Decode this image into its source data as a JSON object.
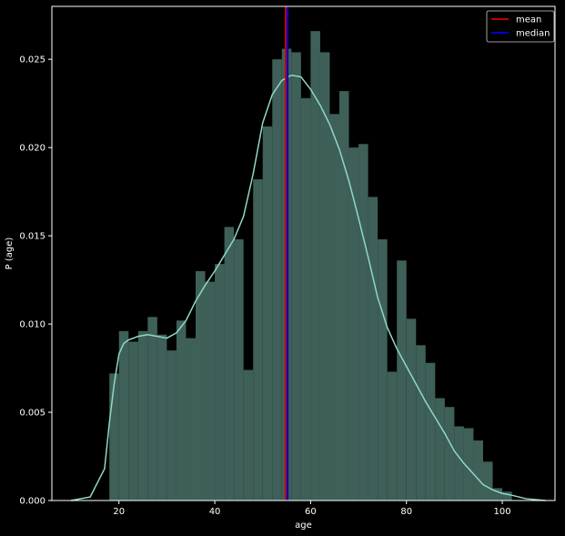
{
  "chart_data": {
    "type": "histogram",
    "title": "",
    "xlabel": "age",
    "ylabel": "P (age)",
    "xlim": [
      6,
      111
    ],
    "ylim": [
      0,
      0.028
    ],
    "xticks": [
      20,
      40,
      60,
      80,
      100
    ],
    "yticks": [
      0.0,
      0.005,
      0.01,
      0.015,
      0.02,
      0.025
    ],
    "ytick_labels": [
      "0.000",
      "0.005",
      "0.010",
      "0.015",
      "0.020",
      "0.025"
    ],
    "grid": false,
    "legend_position": "top-right",
    "bins": {
      "edges": [
        18,
        20,
        22,
        24,
        26,
        28,
        30,
        32,
        34,
        36,
        38,
        40,
        42,
        44,
        46,
        48,
        50,
        52,
        54,
        56,
        58,
        60,
        62,
        64,
        66,
        68,
        70,
        72,
        74,
        76,
        78,
        80,
        82,
        84,
        86,
        88,
        90,
        92,
        94,
        96,
        98,
        100,
        102
      ],
      "density": [
        0.0072,
        0.0096,
        0.009,
        0.0096,
        0.0104,
        0.0094,
        0.0085,
        0.0102,
        0.0092,
        0.013,
        0.0124,
        0.0134,
        0.0155,
        0.0148,
        0.0074,
        0.0182,
        0.0212,
        0.025,
        0.0256,
        0.0254,
        0.0228,
        0.0266,
        0.0254,
        0.0219,
        0.0232,
        0.02,
        0.0202,
        0.0172,
        0.0148,
        0.0073,
        0.0136,
        0.0103,
        0.0088,
        0.0078,
        0.0058,
        0.0053,
        0.0042,
        0.0041,
        0.0034,
        0.0022,
        0.0007,
        0.0005
      ]
    },
    "kde": {
      "x": [
        10,
        14,
        17,
        18,
        19,
        20,
        21,
        22,
        24,
        26,
        28,
        30,
        32,
        34,
        36,
        38,
        40,
        42,
        44,
        46,
        48,
        50,
        52,
        54,
        56,
        58,
        60,
        62,
        64,
        66,
        68,
        70,
        72,
        74,
        76,
        78,
        80,
        82,
        84,
        86,
        88,
        90,
        92,
        94,
        96,
        98,
        100,
        102,
        105,
        109
      ],
      "y": [
        0.0,
        0.0002,
        0.0018,
        0.0044,
        0.0066,
        0.0083,
        0.0089,
        0.0091,
        0.0093,
        0.0094,
        0.0093,
        0.0092,
        0.0095,
        0.0102,
        0.0113,
        0.0122,
        0.013,
        0.0139,
        0.0148,
        0.0161,
        0.0185,
        0.0214,
        0.023,
        0.0238,
        0.0241,
        0.024,
        0.0233,
        0.0224,
        0.0213,
        0.0199,
        0.0181,
        0.016,
        0.0138,
        0.0115,
        0.0098,
        0.0086,
        0.0076,
        0.0066,
        0.0056,
        0.0047,
        0.0038,
        0.0028,
        0.0021,
        0.0015,
        0.0009,
        0.0006,
        0.0004,
        0.0003,
        0.0001,
        0.0
      ]
    },
    "reference_lines": [
      {
        "name": "mean",
        "x": 54.8,
        "color": "#c00000"
      },
      {
        "name": "median",
        "x": 55.2,
        "color": "#0000cc"
      }
    ],
    "colors": {
      "background": "#000000",
      "bar_fill": "#3f5f59",
      "kde_line": "#8fd9c6",
      "axes": "#ffffff"
    },
    "legend": [
      {
        "label": "mean",
        "color": "#c00000"
      },
      {
        "label": "median",
        "color": "#0000cc"
      }
    ]
  }
}
